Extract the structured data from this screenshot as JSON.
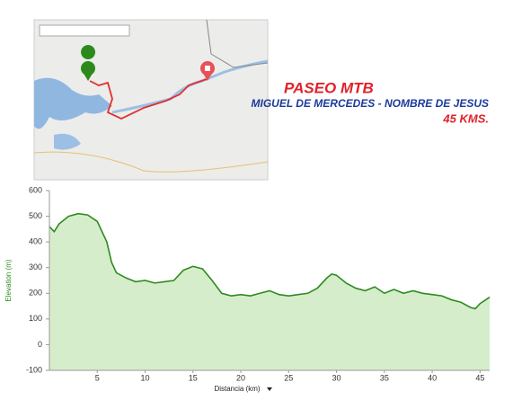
{
  "header": {
    "title": "PASEO MTB",
    "subtitle": "MIGUEL DE MERCEDES - NOMBRE DE JESUS",
    "distance": "45 KMS."
  },
  "chart_data": {
    "type": "area",
    "y_label": "Elevation (m)",
    "x_label": "Distancia (km)",
    "x": [
      0,
      0.5,
      1,
      2,
      3,
      4,
      5,
      6,
      6.5,
      7,
      8,
      9,
      10,
      11,
      12,
      13,
      14,
      15,
      16,
      17,
      18,
      19,
      20,
      21,
      22,
      23,
      24,
      25,
      26,
      27,
      28,
      29,
      29.5,
      30,
      31,
      32,
      33,
      34,
      35,
      36,
      37,
      38,
      39,
      40,
      41,
      42,
      43,
      44,
      44.5,
      45,
      46
    ],
    "series": [
      {
        "name": "Elevation",
        "color": "#2e8b1e",
        "fill": "#d6edcb",
        "values": [
          460,
          440,
          470,
          500,
          510,
          505,
          480,
          400,
          320,
          280,
          260,
          245,
          250,
          240,
          245,
          250,
          290,
          305,
          295,
          250,
          200,
          190,
          195,
          190,
          200,
          210,
          195,
          190,
          195,
          200,
          220,
          260,
          275,
          270,
          240,
          220,
          210,
          225,
          200,
          215,
          200,
          210,
          200,
          195,
          190,
          175,
          165,
          145,
          140,
          160,
          185
        ]
      }
    ],
    "xlim": [
      0,
      46
    ],
    "xticks": [
      5,
      10,
      15,
      20,
      25,
      30,
      35,
      40,
      45
    ],
    "ylim": [
      -100,
      600
    ],
    "yticks": [
      -100,
      0,
      100,
      200,
      300,
      400,
      500,
      600
    ],
    "grid": false
  }
}
